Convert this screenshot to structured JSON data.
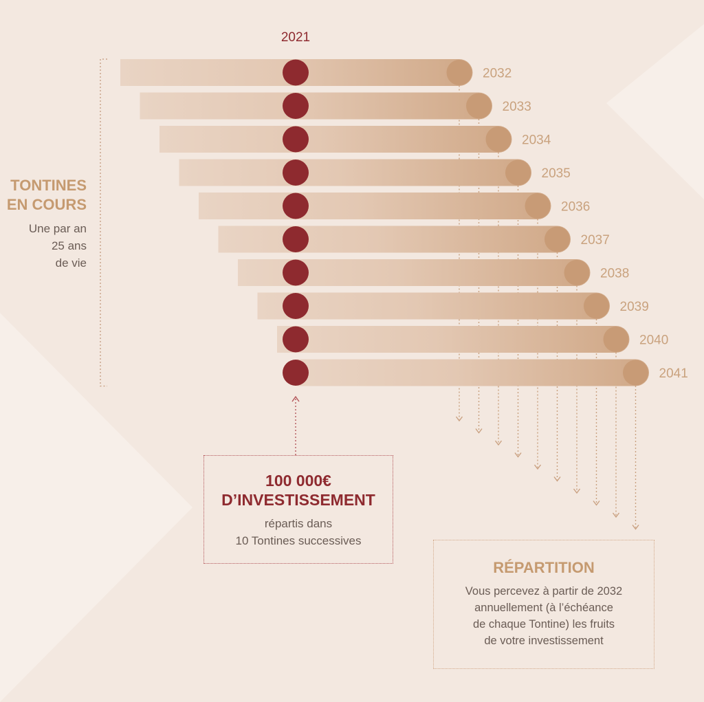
{
  "diagram": {
    "start_year": "2021",
    "tontines": [
      {
        "end_year": "2032"
      },
      {
        "end_year": "2033"
      },
      {
        "end_year": "2034"
      },
      {
        "end_year": "2035"
      },
      {
        "end_year": "2036"
      },
      {
        "end_year": "2037"
      },
      {
        "end_year": "2038"
      },
      {
        "end_year": "2039"
      },
      {
        "end_year": "2040"
      },
      {
        "end_year": "2041"
      }
    ],
    "side_title": [
      "TONTINES",
      "EN COURS"
    ],
    "side_subtitle": [
      "Une par an",
      "25 ans",
      "de vie"
    ],
    "investment": {
      "amount": "100 000€",
      "label": "D’INVESTISSEMENT",
      "description": [
        "répartis dans",
        "10 Tontines successives"
      ]
    },
    "repartition": {
      "title": "RÉPARTITION",
      "description": [
        "Vous percevez à partir de 2032",
        "annuellement (à l’échéance",
        "de chaque Tontine) les fruits",
        "de votre investissement"
      ]
    },
    "colors": {
      "background": "#f3e8e0",
      "bar_light": "#e7d0bf",
      "bar_dark": "#d2aa8a",
      "end_dot": "#c89b76",
      "start_dot": "#8e2a2f",
      "year_label": "#c9a27e",
      "text_dark": "#6a5c55"
    }
  }
}
